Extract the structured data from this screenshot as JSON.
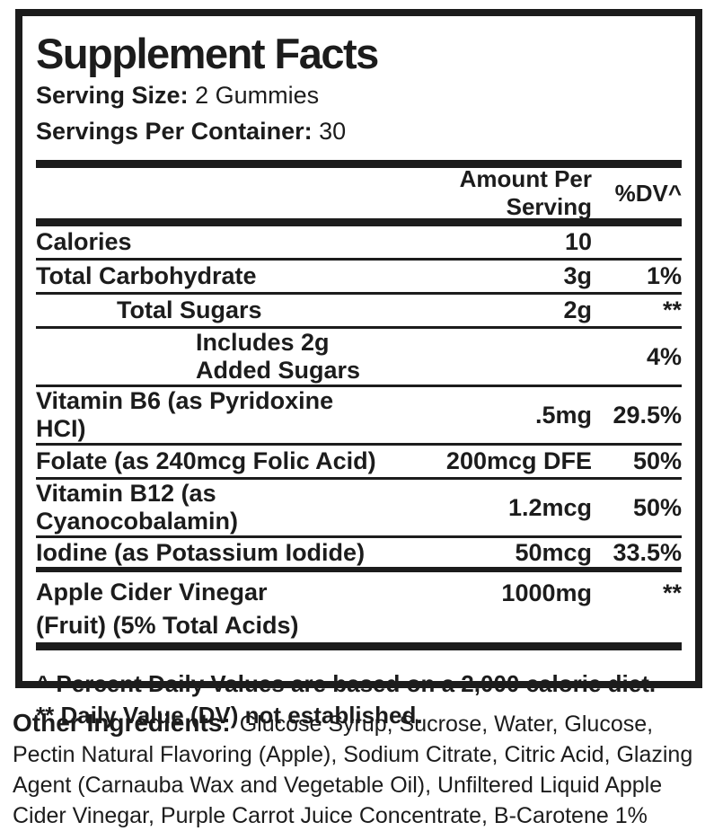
{
  "panel": {
    "title": "Supplement Facts",
    "serving_size": {
      "label": "Serving Size:",
      "value": "2 Gummies"
    },
    "servings_per_container": {
      "label": "Servings Per Container:",
      "value": "30"
    },
    "columns": {
      "amount": "Amount Per Serving",
      "dv": "%DV^"
    },
    "rows": [
      {
        "name": "Calories",
        "amount": "10",
        "dv": ""
      },
      {
        "name": "Total Carbohydrate",
        "amount": "3g",
        "dv": "1%"
      },
      {
        "name": "Total Sugars",
        "amount": "2g",
        "dv": "**"
      },
      {
        "name": "Includes 2g Added Sugars",
        "amount": "",
        "dv": "4%"
      },
      {
        "name": "Vitamin B6 (as Pyridoxine HCI)",
        "amount": ".5mg",
        "dv": "29.5%"
      },
      {
        "name": "Folate (as 240mcg Folic Acid)",
        "amount": "200mcg DFE",
        "dv": "50%"
      },
      {
        "name": "Vitamin B12 (as Cyanocobalamin)",
        "amount": "1.2mcg",
        "dv": "50%"
      },
      {
        "name": "Iodine (as Potassium Iodide)",
        "amount": "50mcg",
        "dv": "33.5%"
      },
      {
        "name_lines": [
          "Apple Cider Vinegar",
          "(Fruit) (5% Total Acids)"
        ],
        "amount": "1000mg",
        "dv": "**"
      }
    ],
    "footnotes": [
      "^ Percent Daily Values are based on a 2,000 calorie diet.",
      "** Daily Value (DV) not established."
    ]
  },
  "other_ingredients": {
    "label": "Other Ingredients:",
    "text": "Glucose Syrup, Sucrose, Water, Glucose, Pectin Natural Flavoring (Apple), Sodium Citrate, Citric Acid, Glazing Agent (Carnauba Wax and Vegetable Oil), Unfiltered Liquid Apple Cider Vinegar, Purple Carrot Juice Concentrate, B-Carotene 1%"
  },
  "colors": {
    "text": "#1c1c1c",
    "background": "#ffffff"
  }
}
